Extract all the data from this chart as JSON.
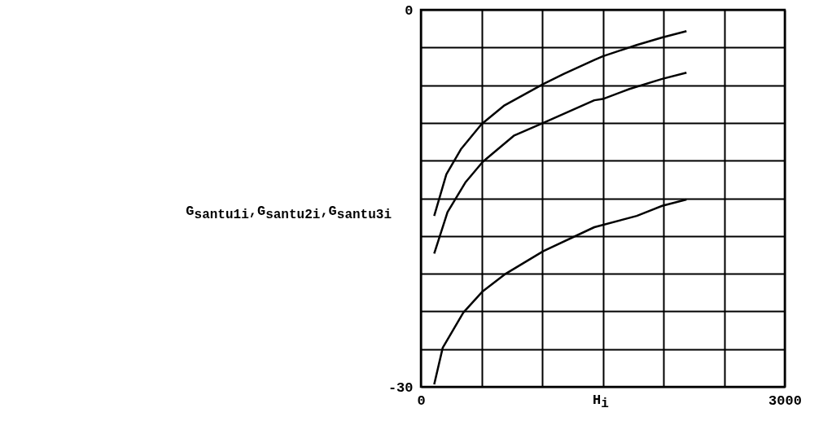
{
  "chart_data": {
    "type": "line",
    "xlabel": "H$_{i}$",
    "ylabel": "G$_{santu1}$$_{i}$,G$_{santu2}$$_{i}$,G$_{santu3}$$_{i}$",
    "xlim": [
      0,
      3000
    ],
    "ylim": [
      -30,
      0
    ],
    "xticks": [
      0,
      {
        "value": 500,
        "label": null
      },
      {
        "value": 1000,
        "label": null
      },
      {
        "value": 1500,
        "label": null
      },
      {
        "value": 2000,
        "label": null
      },
      {
        "value": 2500,
        "label": null
      },
      3000
    ],
    "yticks": [
      -30,
      {
        "value": -27,
        "label": null
      },
      {
        "value": -24,
        "label": null
      },
      {
        "value": -21,
        "label": null
      },
      {
        "value": -18,
        "label": null
      },
      {
        "value": -15,
        "label": null
      },
      {
        "value": -12,
        "label": null
      },
      {
        "value": -9,
        "label": null
      },
      {
        "value": -6,
        "label": null
      },
      {
        "value": -3,
        "label": null
      },
      0
    ],
    "grid": true,
    "marker": "none",
    "line_style": "solid",
    "series": [
      {
        "color": "#000000",
        "x": [
          110,
          210,
          330,
          500,
          690,
          1010,
          1180,
          1430,
          1500,
          1780,
          1990,
          2190
        ],
        "values": [
          -16.4,
          -13.1,
          -11.1,
          -9.1,
          -7.6,
          -5.9,
          -5.1,
          -4.0,
          -3.7,
          -2.8,
          -2.2,
          -1.7
        ]
      },
      {
        "color": "#000000",
        "x": [
          110,
          220,
          370,
          510,
          770,
          1010,
          1430,
          1500,
          1720,
          1990,
          2190
        ],
        "values": [
          -19.4,
          -16.1,
          -13.7,
          -12.1,
          -10.0,
          -9.0,
          -7.2,
          -7.1,
          -6.3,
          -5.5,
          -5.0
        ]
      },
      {
        "color": "#000000",
        "x": [
          110,
          180,
          350,
          510,
          700,
          1010,
          1430,
          1780,
          1990,
          2190
        ],
        "values": [
          -29.8,
          -26.9,
          -24.1,
          -22.4,
          -21.0,
          -19.2,
          -17.3,
          -16.4,
          -15.6,
          -15.1
        ]
      }
    ]
  }
}
